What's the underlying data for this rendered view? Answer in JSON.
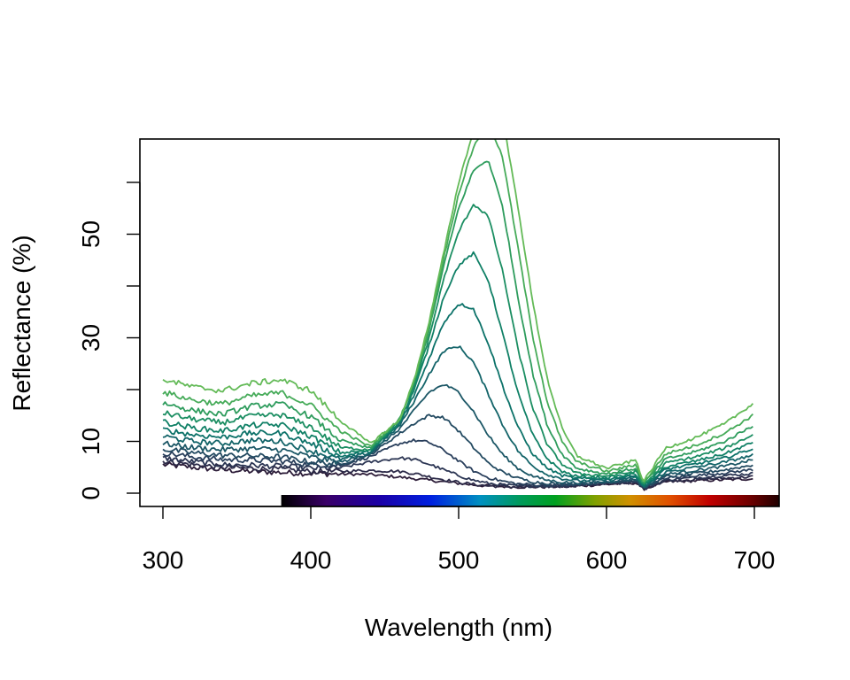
{
  "chart_data": {
    "type": "line",
    "title": "",
    "xlabel": "Wavelength (nm)",
    "ylabel": "Reflectance (%)",
    "xlim": [
      300,
      700
    ],
    "ylim": [
      -2,
      68
    ],
    "x_ticks": [
      300,
      400,
      500,
      600,
      700
    ],
    "y_ticks": [
      0,
      10,
      20,
      30,
      40,
      50,
      60
    ],
    "y_tick_labels": [
      "0",
      "10",
      "",
      "30",
      "",
      "50",
      ""
    ],
    "grid": false,
    "legend": "none",
    "spectrum_bar": {
      "from": 380,
      "to": 720
    },
    "x": [
      300,
      320,
      340,
      360,
      380,
      400,
      420,
      440,
      460,
      470,
      480,
      490,
      500,
      510,
      520,
      530,
      540,
      550,
      560,
      570,
      580,
      600,
      620,
      625,
      640,
      660,
      680,
      700
    ],
    "series": [
      {
        "values": [
          5.5,
          5.0,
          4.5,
          4.2,
          4.0,
          3.8,
          3.7,
          3.6,
          3.1,
          2.8,
          2.5,
          2.2,
          1.9,
          1.6,
          1.4,
          1.3,
          1.2,
          1.2,
          1.2,
          1.3,
          1.4,
          1.7,
          2.0,
          0.8,
          2.2,
          2.4,
          2.6,
          2.8
        ],
        "color": "#2c1c38"
      },
      {
        "values": [
          6.2,
          5.5,
          5.0,
          4.8,
          4.6,
          4.2,
          4.2,
          4.4,
          4.2,
          3.8,
          3.2,
          2.6,
          2.1,
          1.7,
          1.4,
          1.3,
          1.2,
          1.2,
          1.3,
          1.3,
          1.5,
          1.8,
          2.1,
          0.8,
          2.4,
          2.6,
          2.9,
          3.2
        ],
        "color": "#2c2a48"
      },
      {
        "values": [
          6.8,
          6.1,
          5.5,
          5.4,
          5.2,
          4.8,
          4.9,
          6.0,
          6.8,
          6.5,
          5.6,
          4.5,
          3.4,
          2.5,
          1.9,
          1.6,
          1.4,
          1.4,
          1.4,
          1.4,
          1.6,
          1.9,
          2.3,
          0.9,
          2.6,
          3.0,
          3.4,
          3.8
        ],
        "color": "#2b3553"
      },
      {
        "values": [
          7.8,
          7.0,
          6.5,
          6.4,
          6.2,
          5.5,
          5.4,
          7.0,
          9.6,
          10.2,
          9.8,
          8.3,
          6.2,
          4.3,
          3.0,
          2.3,
          1.8,
          1.6,
          1.5,
          1.5,
          1.7,
          2.0,
          2.4,
          1.0,
          2.9,
          3.4,
          3.9,
          4.6
        ],
        "color": "#283e5b"
      },
      {
        "values": [
          8.5,
          7.8,
          7.3,
          7.2,
          7.0,
          6.0,
          5.6,
          7.4,
          11.5,
          13.5,
          15.0,
          14.6,
          12.0,
          8.8,
          5.8,
          4.0,
          2.9,
          2.2,
          1.9,
          1.8,
          1.8,
          2.1,
          2.6,
          1.0,
          3.2,
          3.8,
          4.5,
          5.5
        ],
        "color": "#234a61"
      },
      {
        "values": [
          9.6,
          8.8,
          8.4,
          8.6,
          8.4,
          7.0,
          6.0,
          7.6,
          12.4,
          16.0,
          19.5,
          21.0,
          19.5,
          15.8,
          11.2,
          7.4,
          4.8,
          3.3,
          2.5,
          2.1,
          2.0,
          2.2,
          2.8,
          1.1,
          3.6,
          4.4,
          5.2,
          6.5
        ],
        "color": "#1c5766"
      },
      {
        "values": [
          11.0,
          10.0,
          9.6,
          10.2,
          10.0,
          8.2,
          6.5,
          7.8,
          13.0,
          17.8,
          23.0,
          27.5,
          28.4,
          25.3,
          19.2,
          13.0,
          8.2,
          5.2,
          3.6,
          2.8,
          2.4,
          2.5,
          3.1,
          1.2,
          4.1,
          5.0,
          6.0,
          7.4
        ],
        "color": "#136469"
      },
      {
        "values": [
          12.3,
          11.3,
          10.8,
          11.6,
          11.6,
          9.6,
          7.1,
          8.0,
          13.4,
          19.0,
          26.0,
          33.0,
          36.6,
          35.6,
          29.0,
          20.5,
          12.8,
          7.6,
          4.8,
          3.4,
          2.8,
          2.8,
          3.4,
          1.3,
          4.6,
          5.6,
          6.8,
          8.7
        ],
        "color": "#0c7269"
      },
      {
        "values": [
          13.8,
          12.6,
          12.0,
          13.1,
          13.2,
          11.0,
          7.8,
          8.2,
          13.8,
          20.0,
          28.5,
          38.0,
          44.0,
          46.3,
          41.2,
          30.5,
          19.5,
          11.3,
          6.6,
          4.2,
          3.2,
          3.0,
          3.7,
          1.4,
          5.1,
          6.2,
          7.6,
          9.9
        ],
        "color": "#108066"
      },
      {
        "values": [
          15.5,
          14.3,
          13.6,
          14.9,
          15.1,
          12.8,
          8.8,
          8.4,
          14.0,
          20.8,
          30.0,
          41.5,
          50.5,
          55.8,
          53.5,
          42.5,
          28.0,
          16.5,
          9.3,
          5.6,
          3.8,
          3.3,
          4.2,
          1.6,
          5.8,
          7.0,
          8.7,
          11.4
        ],
        "color": "#1b8e62"
      },
      {
        "values": [
          17.4,
          16.0,
          15.2,
          16.8,
          17.2,
          14.8,
          10.2,
          8.6,
          14.2,
          21.4,
          31.3,
          44.0,
          55.0,
          62.3,
          64.4,
          55.0,
          38.0,
          23.2,
          13.0,
          7.5,
          4.8,
          3.7,
          4.8,
          1.8,
          6.6,
          8.0,
          10.0,
          13.2
        ],
        "color": "#2e9c5d"
      },
      {
        "values": [
          19.5,
          18.0,
          17.2,
          18.8,
          19.4,
          17.0,
          12.0,
          9.0,
          14.2,
          21.8,
          32.0,
          45.5,
          57.8,
          66.8,
          72.0,
          64.5,
          47.6,
          30.4,
          17.5,
          9.8,
          6.0,
          4.2,
          5.5,
          2.0,
          7.6,
          9.2,
          11.6,
          15.2
        ],
        "color": "#46ab59"
      },
      {
        "values": [
          22.0,
          20.5,
          19.8,
          21.2,
          21.9,
          19.8,
          14.0,
          9.6,
          14.0,
          22.0,
          33.0,
          46.5,
          60.0,
          70.0,
          76.5,
          72.0,
          55.5,
          37.0,
          22.0,
          12.4,
          7.2,
          4.8,
          6.4,
          2.2,
          8.7,
          10.7,
          13.4,
          17.5
        ],
        "color": "#63ba57"
      }
    ]
  }
}
